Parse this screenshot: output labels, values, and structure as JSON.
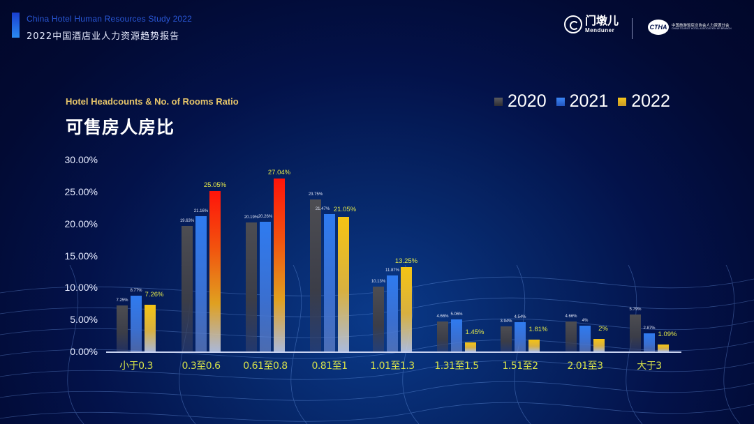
{
  "header": {
    "subtitle_en": "China Hotel Human Resources Study 2022",
    "title_cn": "2022中国酒店业人力资源趋势报告"
  },
  "logos": {
    "menduner_cn": "门墩儿",
    "menduner_en": "Menduner",
    "association_badge": "CTHA",
    "association_cn": "中国旅游饭店业协会人力资源分会",
    "association_en": "CHINA TOURIST HOTEL ASSOCIATION HR BRANCH"
  },
  "chart": {
    "subtitle_en": "Hotel Headcounts & No. of Rooms Ratio",
    "title_cn": "可售房人房比"
  },
  "colors": {
    "s2020": "#4a4a4e",
    "s2021": "#2f7bf0",
    "s2022": "#f2c01a",
    "highlight": "#ff1a0a",
    "label_yellow": "#e3e84a",
    "axis_text": "#d7e24a",
    "title_gold": "#e6c56a"
  },
  "chart_data": {
    "type": "bar",
    "title": "可售房人房比",
    "subtitle": "Hotel Headcounts & No. of Rooms Ratio",
    "xlabel": "",
    "ylabel": "",
    "ylim": [
      0,
      30
    ],
    "yticks": [
      "0.00%",
      "5.00%",
      "10.00%",
      "15.00%",
      "20.00%",
      "25.00%",
      "30.00%"
    ],
    "grid": false,
    "legend_position": "top-right",
    "categories": [
      "小于0.3",
      "0.3至0.6",
      "0.61至0.8",
      "0.81至1",
      "1.01至1.3",
      "1.31至1.5",
      "1.51至2",
      "2.01至3",
      "大于3"
    ],
    "series": [
      {
        "name": "2020",
        "values": [
          7.25,
          19.63,
          20.19,
          23.75,
          10.13,
          4.66,
          3.94,
          4.66,
          5.79
        ],
        "labels": [
          "7.25%",
          "19.63%",
          "20.19%",
          "23.75%",
          "10.13%",
          "4.66%",
          "3.94%",
          "4.66%",
          "5.79%"
        ]
      },
      {
        "name": "2021",
        "values": [
          8.77,
          21.16,
          20.26,
          21.47,
          11.87,
          5.06,
          4.54,
          4,
          2.87
        ],
        "labels": [
          "8.77%",
          "21.16%",
          "20.26%",
          "21.47%",
          "11.87%",
          "5.06%",
          "4.54%",
          "4%",
          "2.87%"
        ]
      },
      {
        "name": "2022",
        "values": [
          7.26,
          25.05,
          27.04,
          21.05,
          13.25,
          1.45,
          1.81,
          2,
          1.09
        ],
        "labels": [
          "7.26%",
          "25.05%",
          "27.04%",
          "21.05%",
          "13.25%",
          "1.45%",
          "1.81%",
          "2%",
          "1.09%"
        ]
      }
    ],
    "highlighted_bars": [
      {
        "series": "2022",
        "category": "0.3至0.6"
      },
      {
        "series": "2022",
        "category": "0.61至0.8"
      }
    ]
  }
}
